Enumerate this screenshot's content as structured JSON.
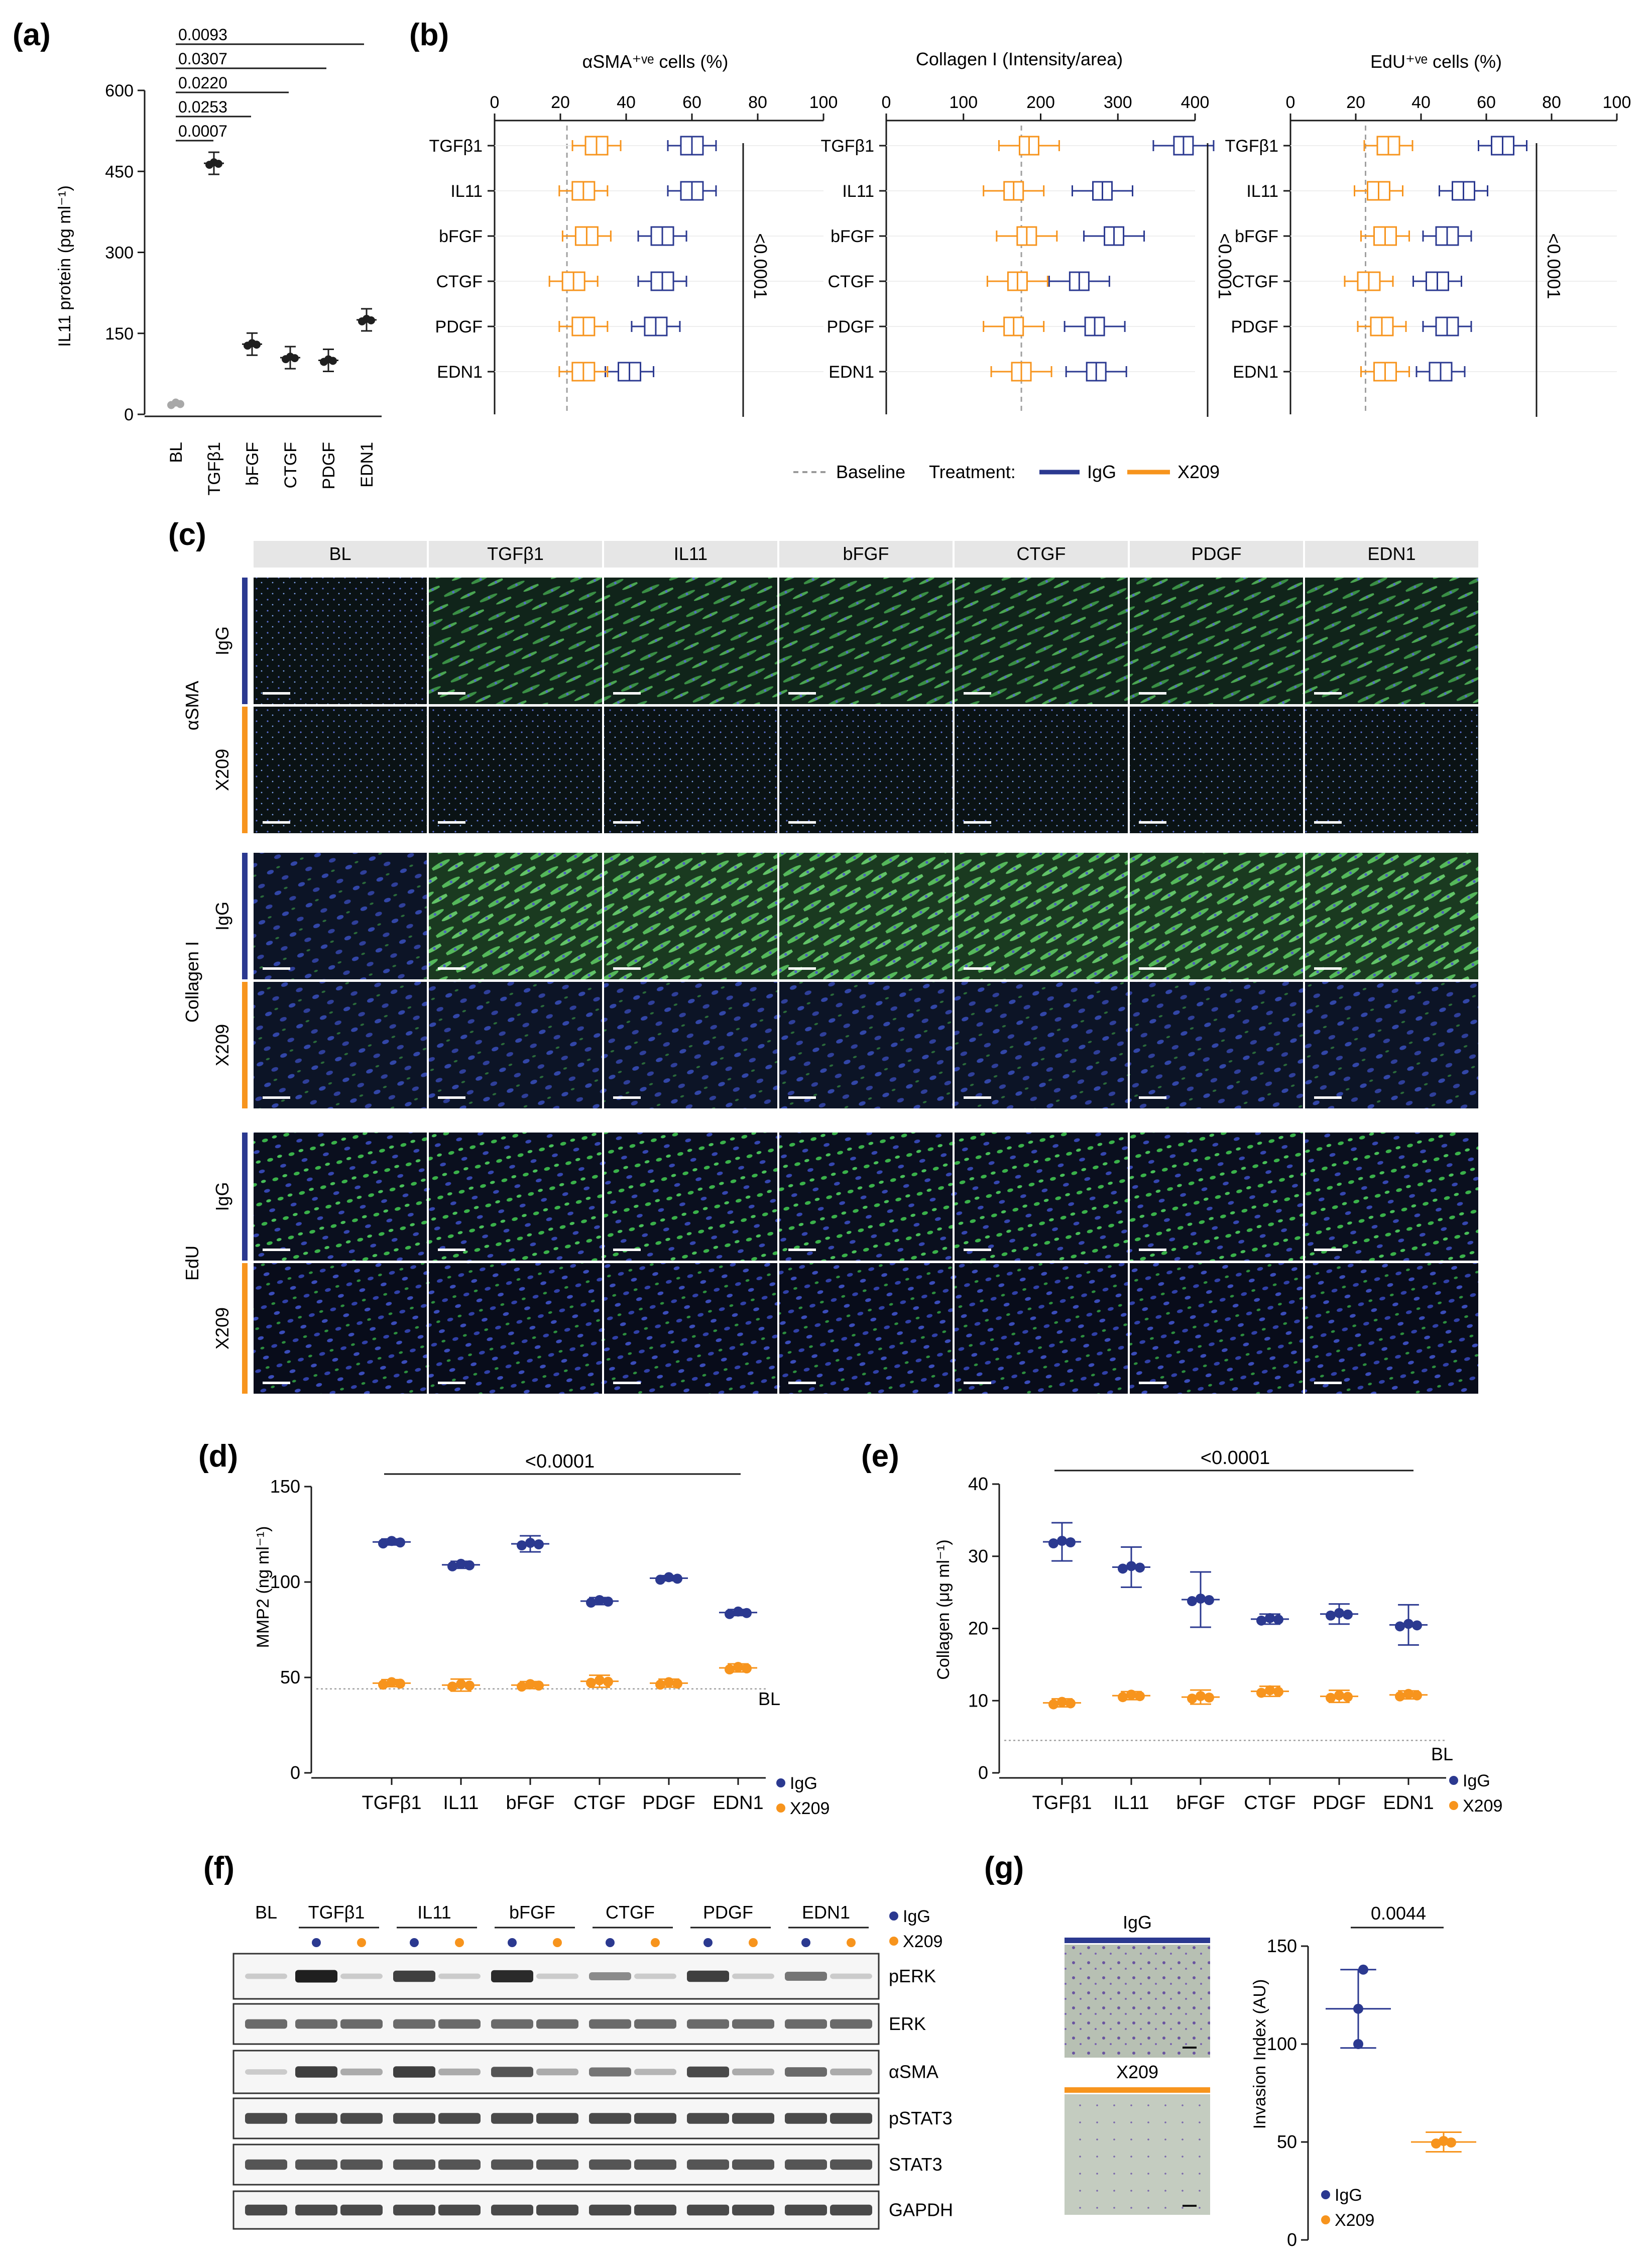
{
  "colors": {
    "igg": "#2b3990",
    "x209": "#f7941d",
    "black": "#1a1a1a",
    "grey": "#9a9a9a",
    "header_bg": "#e6e6e6",
    "green_stain": "#3fae49",
    "blue_stain": "#2e3a9c"
  },
  "panels": {
    "a": "(a)",
    "b": "(b)",
    "c": "(c)",
    "d": "(d)",
    "e": "(e)",
    "f": "(f)",
    "g": "(g)"
  },
  "groups": [
    "TGFβ1",
    "IL11",
    "bFGF",
    "CTGF",
    "PDGF",
    "EDN1"
  ],
  "panel_a": {
    "ylabel": "IL11 protein (pg ml⁻¹)",
    "yticks": [
      "0",
      "150",
      "300",
      "450",
      "600"
    ],
    "categories": [
      "BL",
      "TGFβ1",
      "bFGF",
      "CTGF",
      "PDGF",
      "EDN1"
    ],
    "pvalues": [
      "0.0093",
      "0.0307",
      "0.0220",
      "0.0253",
      "0.0007"
    ]
  },
  "panel_b": {
    "titles": [
      "αSMA⁺ᵛᵉ cells (%)",
      "Collagen I (Intensity/area)",
      "EdU⁺ᵛᵉ cells (%)"
    ],
    "ticks1": [
      "0",
      "20",
      "40",
      "60",
      "80",
      "100"
    ],
    "ticks2": [
      "0",
      "100",
      "200",
      "300",
      "400"
    ],
    "ticks3": [
      "0",
      "20",
      "40",
      "60",
      "80",
      "100"
    ],
    "rows": [
      "TGFβ1",
      "IL11",
      "bFGF",
      "CTGF",
      "PDGF",
      "EDN1"
    ],
    "pvalue": "<0.0001",
    "legend_baseline": "Baseline",
    "legend_treatment": "Treatment:",
    "legend_igg": "IgG",
    "legend_x209": "X209"
  },
  "panel_c": {
    "columns": [
      "BL",
      "TGFβ1",
      "IL11",
      "bFGF",
      "CTGF",
      "PDGF",
      "EDN1"
    ],
    "row_groups": [
      "αSMA",
      "Collagen I",
      "EdU"
    ],
    "treatments": [
      "IgG",
      "X209"
    ]
  },
  "panel_d": {
    "ylabel": "MMP2 (ng ml⁻¹)",
    "yticks": [
      "0",
      "50",
      "100",
      "150"
    ],
    "pvalue": "<0.0001",
    "baseline_label": "BL",
    "legend": [
      "IgG",
      "X209"
    ]
  },
  "panel_e": {
    "ylabel": "Collagen (μg ml⁻¹)",
    "yticks": [
      "0",
      "10",
      "20",
      "30",
      "40"
    ],
    "pvalue": "<0.0001",
    "baseline_label": "BL",
    "legend": [
      "IgG",
      "X209"
    ]
  },
  "panel_f": {
    "bl": "BL",
    "bands": [
      "pERK",
      "ERK",
      "αSMA",
      "pSTAT3",
      "STAT3",
      "GAPDH"
    ],
    "legend": [
      "IgG",
      "X209"
    ]
  },
  "panel_g": {
    "image_labels": [
      "IgG",
      "X209"
    ],
    "ylabel": "Invasion Index (AU)",
    "yticks": [
      "0",
      "50",
      "100",
      "150"
    ],
    "pvalue": "0.0044",
    "legend": [
      "IgG",
      "X209"
    ]
  },
  "chart_data": [
    {
      "panel": "a",
      "type": "scatter",
      "ylabel": "IL11 protein (pg ml⁻¹)",
      "ylim": [
        0,
        600
      ],
      "categories": [
        "BL",
        "TGFβ1",
        "bFGF",
        "CTGF",
        "PDGF",
        "EDN1"
      ],
      "values": [
        20,
        465,
        130,
        105,
        100,
        175
      ]
    },
    {
      "panel": "b1",
      "type": "box",
      "title": "αSMA⁺ᵛᵉ cells (%)",
      "xlim": [
        0,
        100
      ],
      "categories": [
        "TGFβ1",
        "IL11",
        "bFGF",
        "CTGF",
        "PDGF",
        "EDN1"
      ],
      "baseline": 22,
      "series": [
        {
          "name": "IgG",
          "values": [
            60,
            60,
            51,
            51,
            49,
            41
          ]
        },
        {
          "name": "X209",
          "values": [
            31,
            27,
            28,
            24,
            27,
            27
          ]
        }
      ]
    },
    {
      "panel": "b2",
      "type": "box",
      "title": "Collagen I (Intensity/area)",
      "xlim": [
        0,
        400
      ],
      "categories": [
        "TGFβ1",
        "IL11",
        "bFGF",
        "CTGF",
        "PDGF",
        "EDN1"
      ],
      "baseline": 175,
      "series": [
        {
          "name": "IgG",
          "values": [
            385,
            280,
            295,
            250,
            270,
            272
          ]
        },
        {
          "name": "X209",
          "values": [
            185,
            165,
            182,
            170,
            165,
            175
          ]
        }
      ]
    },
    {
      "panel": "b3",
      "type": "box",
      "title": "EdU⁺ᵛᵉ cells (%)",
      "xlim": [
        0,
        100
      ],
      "categories": [
        "TGFβ1",
        "IL11",
        "bFGF",
        "CTGF",
        "PDGF",
        "EDN1"
      ],
      "baseline": 23,
      "series": [
        {
          "name": "IgG",
          "values": [
            65,
            53,
            48,
            45,
            48,
            46
          ]
        },
        {
          "name": "X209",
          "values": [
            30,
            27,
            29,
            24,
            28,
            29
          ]
        }
      ]
    },
    {
      "panel": "d",
      "type": "scatter",
      "ylabel": "MMP2 (ng ml⁻¹)",
      "ylim": [
        0,
        150
      ],
      "categories": [
        "TGFβ1",
        "IL11",
        "bFGF",
        "CTGF",
        "PDGF",
        "EDN1"
      ],
      "baseline": 44,
      "series": [
        {
          "name": "IgG",
          "values": [
            121,
            109,
            120,
            90,
            102,
            84
          ]
        },
        {
          "name": "X209",
          "values": [
            47,
            46,
            46,
            48,
            47,
            55
          ]
        }
      ]
    },
    {
      "panel": "e",
      "type": "scatter",
      "ylabel": "Collagen (μg ml⁻¹)",
      "ylim": [
        0,
        40
      ],
      "categories": [
        "TGFβ1",
        "IL11",
        "bFGF",
        "CTGF",
        "PDGF",
        "EDN1"
      ],
      "baseline": 4.5,
      "series": [
        {
          "name": "IgG",
          "values": [
            32,
            28.5,
            24,
            21.3,
            22,
            20.5
          ]
        },
        {
          "name": "X209",
          "values": [
            9.7,
            10.7,
            10.5,
            11.3,
            10.6,
            10.8
          ]
        }
      ]
    },
    {
      "panel": "g",
      "type": "scatter",
      "ylabel": "Invasion Index (AU)",
      "ylim": [
        0,
        150
      ],
      "categories": [
        "IgG",
        "X209"
      ],
      "values": [
        118,
        50
      ]
    }
  ]
}
